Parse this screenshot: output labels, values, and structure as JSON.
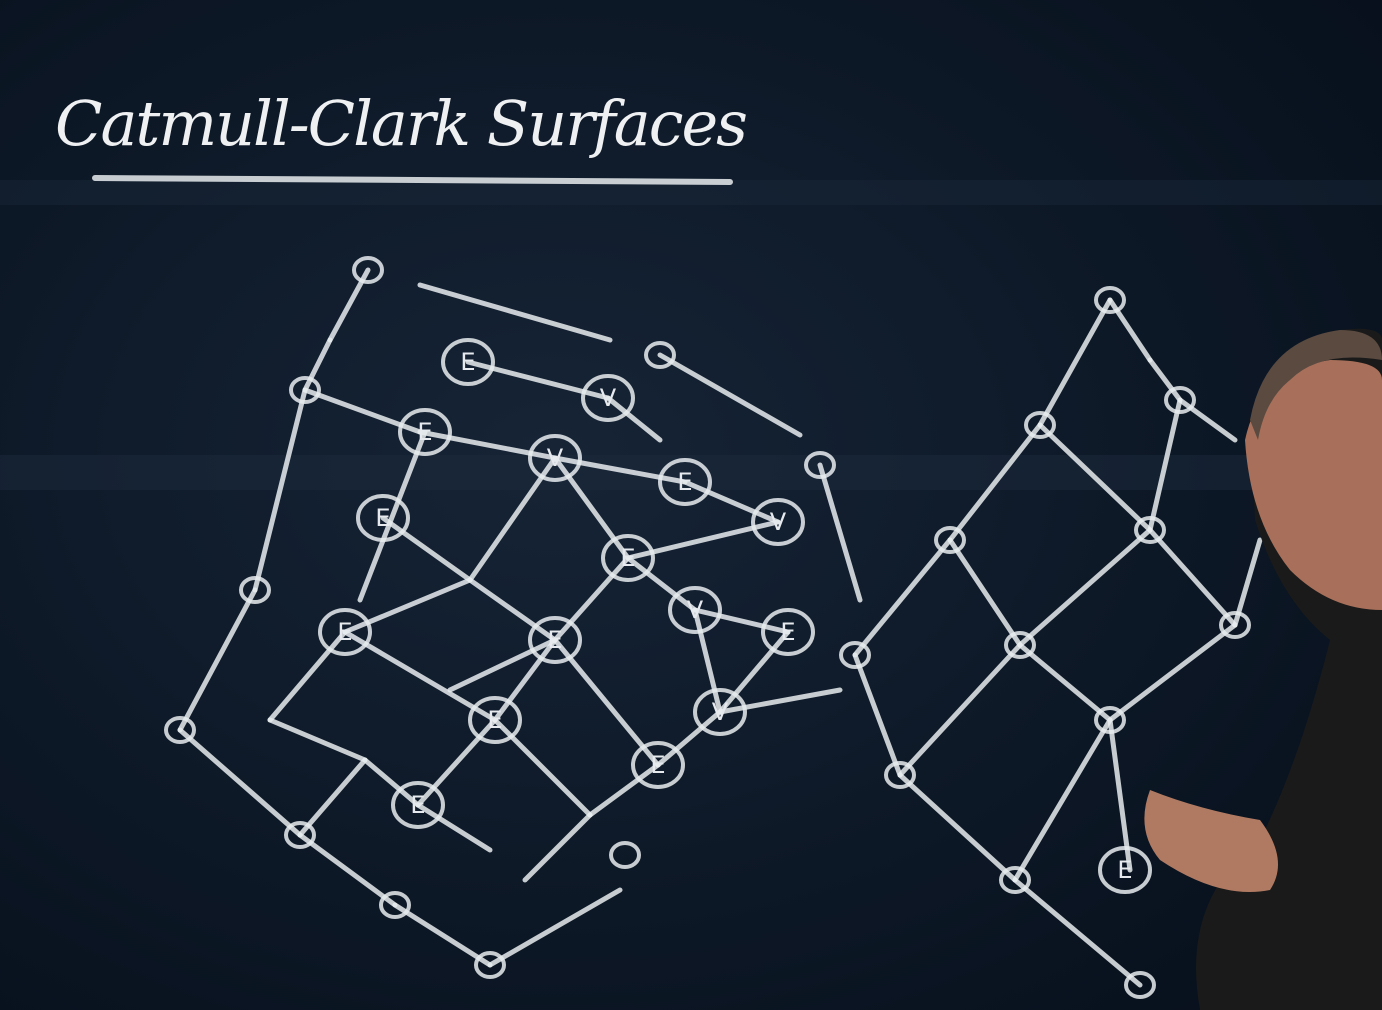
{
  "title": "Catmull-Clark Surfaces",
  "nodes": [
    {
      "label": "E"
    },
    {
      "label": "V"
    },
    {
      "label": "E"
    },
    {
      "label": "V"
    },
    {
      "label": "E"
    },
    {
      "label": "E"
    },
    {
      "label": "V"
    },
    {
      "label": "E"
    },
    {
      "label": "E"
    },
    {
      "label": "E"
    },
    {
      "label": "V"
    },
    {
      "label": "E"
    },
    {
      "label": "E"
    },
    {
      "label": "V"
    },
    {
      "label": "E"
    },
    {
      "label": "E"
    },
    {
      "label": "E"
    }
  ]
}
